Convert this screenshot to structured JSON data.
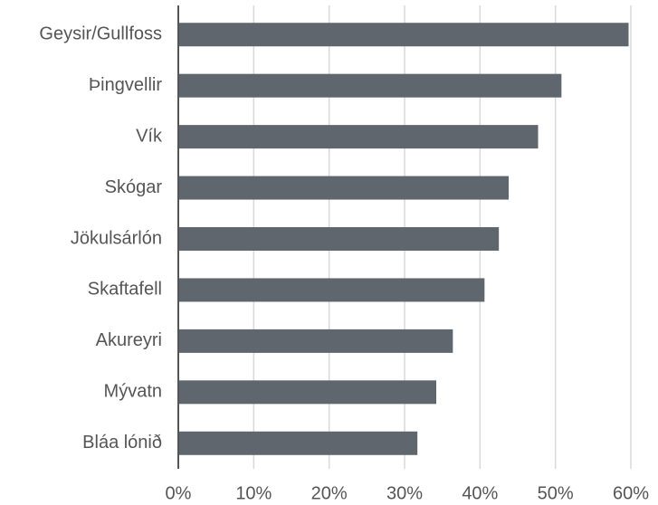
{
  "chart_data": {
    "type": "barh",
    "categories": [
      "Geysir/Gullfoss",
      "Þingvellir",
      "Vík",
      "Skógar",
      "Jökulsárlón",
      "Skaftafell",
      "Akureyri",
      "Mývatn",
      "Bláa lónið"
    ],
    "values": [
      59.7,
      50.8,
      47.7,
      43.8,
      42.5,
      40.6,
      36.4,
      34.2,
      31.7
    ],
    "color": "#5f666d",
    "xlim": [
      0,
      60
    ],
    "xticks": [
      {
        "value": 0,
        "label": "0%"
      },
      {
        "value": 10,
        "label": "10%"
      },
      {
        "value": 20,
        "label": "20%"
      },
      {
        "value": 30,
        "label": "30%"
      },
      {
        "value": 40,
        "label": "40%"
      },
      {
        "value": 50,
        "label": "50%"
      },
      {
        "value": 60,
        "label": "60%"
      }
    ],
    "grid": true
  }
}
